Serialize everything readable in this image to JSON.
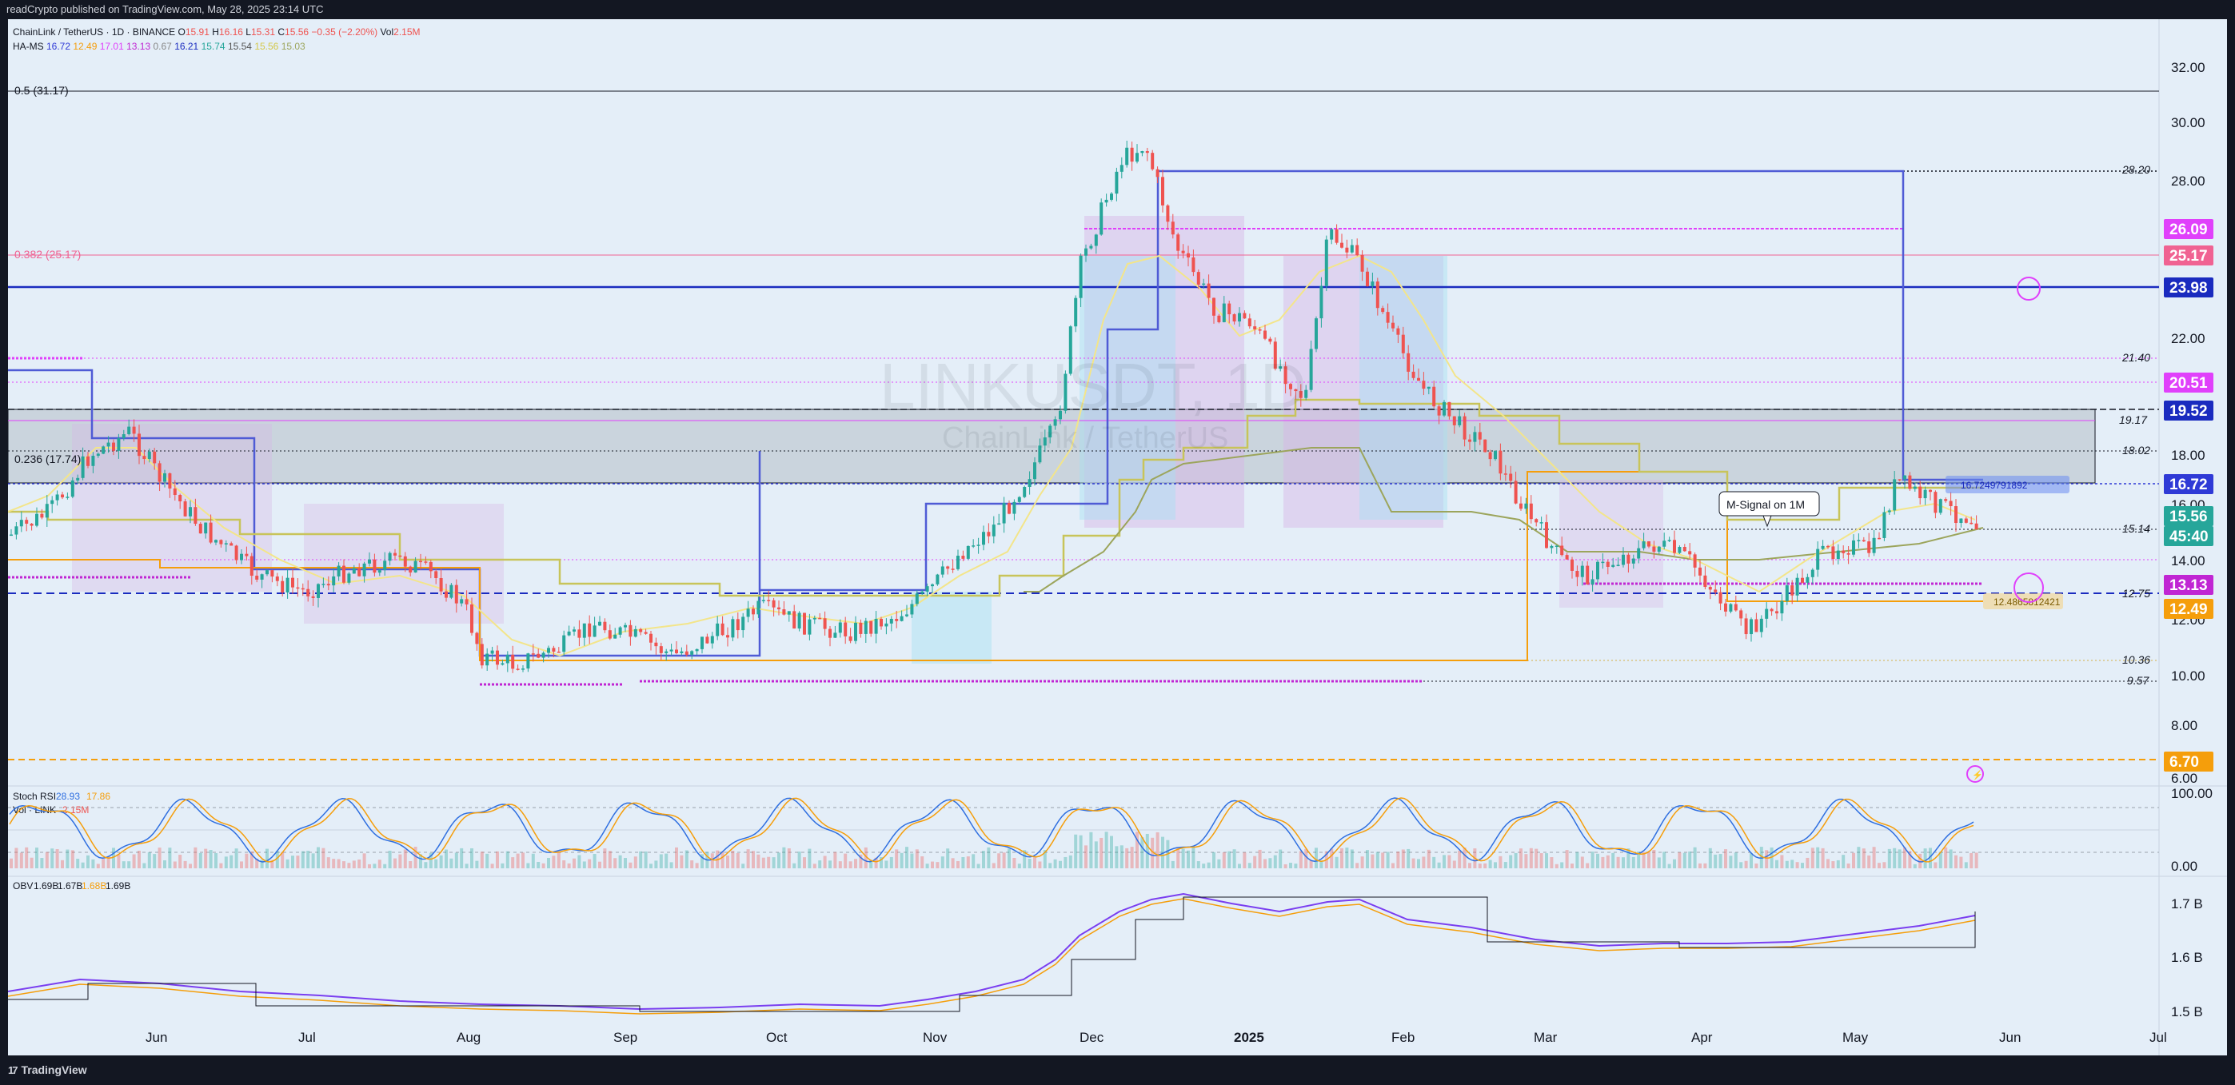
{
  "header": {
    "published": "readCrypto published on TradingView.com, May 28, 2025 23:14 UTC"
  },
  "legend": {
    "symbol": "ChainLink / TetherUS · 1D · BINANCE",
    "o_label": "O",
    "o": "15.91",
    "h_label": "H",
    "h": "16.16",
    "l_label": "L",
    "l": "15.31",
    "c_label": "C",
    "c": "15.56",
    "chg": "−0.35 (−2.20%)",
    "vol_label": "Vol",
    "vol": "2.15M",
    "ha_ms_label": "HA-MS",
    "ha_ms_values": [
      "16.72",
      "12.49",
      "17.01",
      "13.13",
      "0.67",
      "16.21",
      "15.74",
      "15.54",
      "15.56",
      "15.03"
    ]
  },
  "watermark": {
    "ticker": "LINKUSDT, 1D",
    "name": "ChainLink / TetherUS"
  },
  "fib_labels": {
    "f05": "0.5 (31.17)",
    "f0382": "0.382 (25.17)",
    "f0236": "0.236 (17.74)"
  },
  "price_axis": {
    "ticks": [
      "32.00",
      "30.00",
      "28.00",
      "22.00",
      "18.00",
      "16.00",
      "14.00",
      "12.00",
      "10.00",
      "8.00",
      "6.00"
    ]
  },
  "level_labels": [
    "28.20",
    "21.40",
    "19.17",
    "18.02",
    "15.14",
    "12.75",
    "10.36",
    "9.57"
  ],
  "badges": [
    {
      "text": "26.09",
      "bg": "#e040fb"
    },
    {
      "text": "25.17",
      "bg": "#f06292"
    },
    {
      "text": "23.98",
      "bg": "#1a2bbf"
    },
    {
      "text": "20.51",
      "bg": "#e040fb"
    },
    {
      "text": "19.52",
      "bg": "#1a2bbf"
    },
    {
      "text": "16.72",
      "bg": "#2f3ad6"
    },
    {
      "text": "15.56",
      "bg": "#26a69a"
    },
    {
      "text": "45:40",
      "bg": "#26a69a"
    },
    {
      "text": "13.13",
      "bg": "#c026d3"
    },
    {
      "text": "12.49",
      "bg": "#f59e0b"
    },
    {
      "text": "6.70",
      "bg": "#f59e0b"
    }
  ],
  "inline_labels": {
    "upper": "16.7249791892",
    "lower": "12.4865812421"
  },
  "signal_callout": "M-Signal on 1M",
  "stoch": {
    "label": "Stoch RSI",
    "k": "28.93",
    "d": "17.86",
    "vol_label": "Vol · LINK",
    "vol": "2.15M",
    "ticks": [
      "100.00",
      "0.00"
    ]
  },
  "obv": {
    "label": "OBV",
    "values": [
      "1.69B",
      "1.67B",
      "1.68B",
      "1.69B"
    ],
    "ticks": [
      "1.7 B",
      "1.6 B",
      "1.5 B"
    ]
  },
  "time_axis": [
    "Jun",
    "Jul",
    "Aug",
    "Sep",
    "Oct",
    "Nov",
    "Dec",
    "2025",
    "Feb",
    "Mar",
    "Apr",
    "May",
    "Jun",
    "Jul"
  ],
  "colors": {
    "up": "#26a69a",
    "down": "#ef5350",
    "background": "#e4eef8"
  },
  "footer": {
    "brand": "TradingView",
    "logo": "tradingview-logo-icon"
  }
}
